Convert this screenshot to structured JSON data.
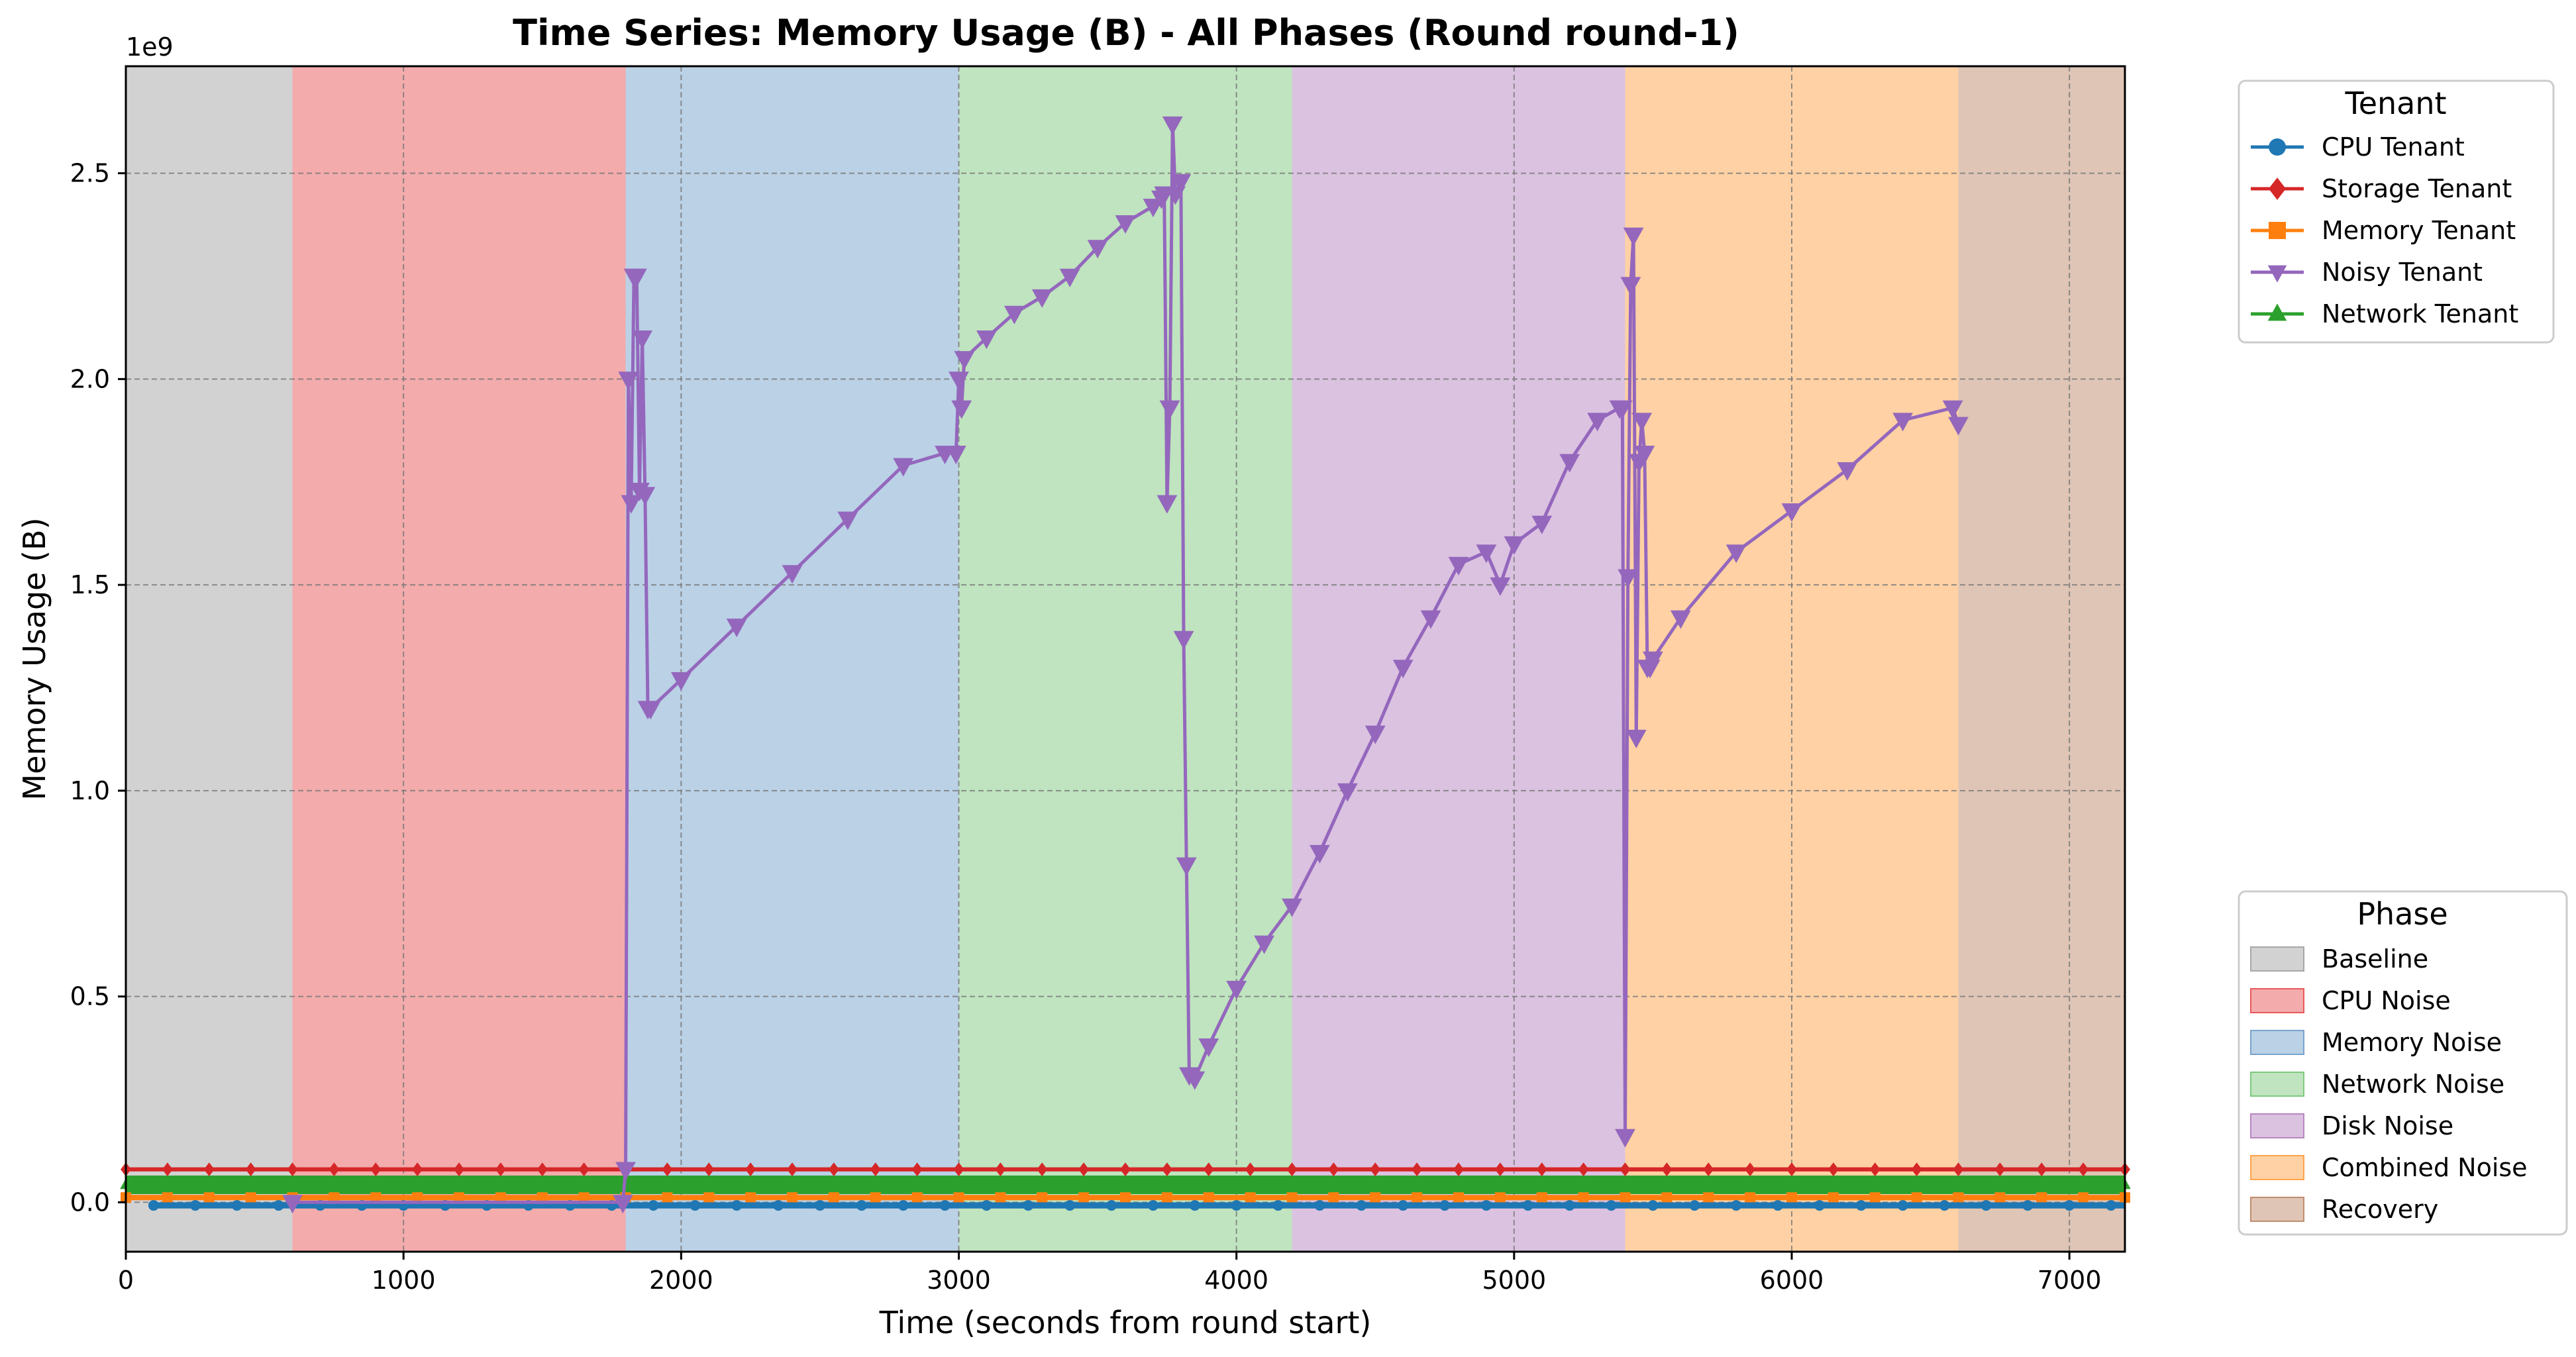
{
  "chart_data": {
    "type": "line",
    "title": "Time Series: Memory Usage (B) - All Phases (Round round-1)",
    "xlabel": "Time (seconds from round start)",
    "ylabel": "Memory Usage (B)",
    "y_offset_label": "1e9",
    "xlim": [
      0,
      7200
    ],
    "ylim": [
      -0.12,
      2.76
    ],
    "y_scale_note": "values in units of 1e9 B",
    "grid": true,
    "x_ticks": [
      0,
      1000,
      2000,
      3000,
      4000,
      5000,
      6000,
      7000
    ],
    "x_tick_labels": [
      "0",
      "1000",
      "2000",
      "3000",
      "4000",
      "5000",
      "6000",
      "7000"
    ],
    "y_ticks": [
      0.0,
      0.5,
      1.0,
      1.5,
      2.0,
      2.5
    ],
    "y_tick_labels": [
      "0.0",
      "0.5",
      "1.0",
      "1.5",
      "2.0",
      "2.5"
    ],
    "phases": [
      {
        "name": "Baseline",
        "start": 0,
        "end": 600,
        "color": "#a6a6a6"
      },
      {
        "name": "CPU Noise",
        "start": 600,
        "end": 1800,
        "color": "#e8585a"
      },
      {
        "name": "Memory Noise",
        "start": 1800,
        "end": 3000,
        "color": "#77a3cd"
      },
      {
        "name": "Network Noise",
        "start": 3000,
        "end": 4200,
        "color": "#80c97f"
      },
      {
        "name": "Disk Noise",
        "start": 4200,
        "end": 5400,
        "color": "#b886c2"
      },
      {
        "name": "Combined Noise",
        "start": 5400,
        "end": 6600,
        "color": "#ffa34a"
      },
      {
        "name": "Recovery",
        "start": 6600,
        "end": 7200,
        "color": "#bf8c6e"
      }
    ],
    "series": [
      {
        "name": "CPU Tenant",
        "color": "#1f77b4",
        "marker": "circle",
        "band": [
          0.0,
          -0.015
        ],
        "x_start": 100
      },
      {
        "name": "Storage Tenant",
        "color": "#d62728",
        "marker": "diamond",
        "band": [
          0.085,
          0.075
        ],
        "x_start": 0
      },
      {
        "name": "Memory Tenant",
        "color": "#ff7f0e",
        "marker": "square",
        "band": [
          0.018,
          0.005
        ],
        "x_start": 0
      },
      {
        "name": "Noisy Tenant",
        "color": "#9467bd",
        "marker": "triangle-down",
        "x": [
          600,
          1790,
          1800,
          1810,
          1820,
          1830,
          1840,
          1850,
          1860,
          1870,
          1880,
          1890,
          2000,
          2200,
          2400,
          2600,
          2800,
          2950,
          2990,
          3000,
          3010,
          3020,
          3100,
          3200,
          3300,
          3400,
          3500,
          3600,
          3700,
          3730,
          3740,
          3750,
          3760,
          3770,
          3780,
          3800,
          3810,
          3820,
          3830,
          3850,
          3900,
          4000,
          4100,
          4200,
          4300,
          4400,
          4500,
          4600,
          4700,
          4800,
          4900,
          4950,
          5000,
          5100,
          5200,
          5300,
          5380,
          5390,
          5400,
          5410,
          5420,
          5430,
          5440,
          5450,
          5460,
          5470,
          5480,
          5490,
          5500,
          5600,
          5800,
          6000,
          6200,
          6400,
          6580,
          6600
        ],
        "y": [
          0.0,
          0.0,
          0.08,
          2.0,
          1.7,
          2.25,
          2.25,
          1.73,
          2.1,
          1.72,
          1.2,
          1.2,
          1.27,
          1.4,
          1.53,
          1.66,
          1.79,
          1.82,
          1.82,
          2.0,
          1.93,
          2.05,
          2.1,
          2.16,
          2.2,
          2.25,
          2.32,
          2.38,
          2.42,
          2.44,
          2.45,
          1.7,
          1.93,
          2.62,
          2.45,
          2.48,
          1.37,
          0.82,
          0.31,
          0.3,
          0.38,
          0.52,
          0.63,
          0.72,
          0.85,
          1.0,
          1.14,
          1.3,
          1.42,
          1.55,
          1.58,
          1.5,
          1.6,
          1.65,
          1.8,
          1.9,
          1.93,
          1.93,
          0.16,
          1.52,
          2.23,
          2.35,
          1.13,
          1.8,
          1.9,
          1.82,
          1.3,
          1.3,
          1.32,
          1.42,
          1.58,
          1.68,
          1.78,
          1.9,
          1.93,
          1.89
        ]
      },
      {
        "name": "Network Tenant",
        "color": "#2ca02c",
        "marker": "triangle-up",
        "band": [
          0.065,
          0.02
        ],
        "x_start": 0
      }
    ],
    "legend_tenant_title": "Tenant",
    "legend_phase_title": "Phase",
    "legend_placement": "outside right (tenants top, phases bottom)"
  }
}
